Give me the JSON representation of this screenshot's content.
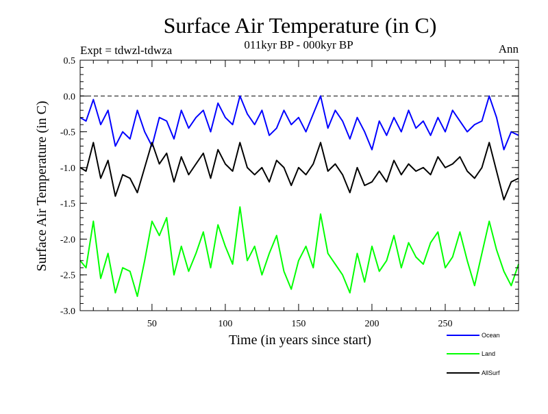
{
  "chart_data": {
    "type": "line",
    "title": "Surface Air Temperature (in C)",
    "subtitle": "011kyr BP - 000kyr BP",
    "left_label": "Expt = tdwzl-tdwza",
    "right_label": "Ann",
    "xlabel": "Time (in years since start)",
    "ylabel": "Surface Air Temperature (in C)",
    "xlim": [
      1,
      300
    ],
    "ylim": [
      -3.0,
      0.5
    ],
    "xticks": [
      50,
      100,
      150,
      200,
      250
    ],
    "yticks": [
      0.5,
      0.0,
      -0.5,
      -1.0,
      -1.5,
      -2.0,
      -2.5,
      -3.0
    ],
    "ytick_labels": [
      "0.5",
      "0.0",
      "-0.5",
      "-1.0",
      "-1.5",
      "-2.0",
      "-2.5",
      "-3.0"
    ],
    "reference_line": 0.0,
    "legend_position": "bottom-right",
    "series": [
      {
        "name": "Ocean",
        "color": "#0000ff",
        "x": [
          1,
          5,
          10,
          15,
          20,
          25,
          30,
          35,
          40,
          45,
          50,
          55,
          60,
          65,
          70,
          75,
          80,
          85,
          90,
          95,
          100,
          105,
          110,
          115,
          120,
          125,
          130,
          135,
          140,
          145,
          150,
          155,
          160,
          165,
          170,
          175,
          180,
          185,
          190,
          195,
          200,
          205,
          210,
          215,
          220,
          225,
          230,
          235,
          240,
          245,
          250,
          255,
          260,
          265,
          270,
          275,
          280,
          285,
          290,
          295,
          300
        ],
        "values": [
          -0.3,
          -0.35,
          -0.05,
          -0.4,
          -0.2,
          -0.7,
          -0.5,
          -0.6,
          -0.2,
          -0.5,
          -0.7,
          -0.3,
          -0.35,
          -0.6,
          -0.2,
          -0.45,
          -0.3,
          -0.2,
          -0.5,
          -0.1,
          -0.3,
          -0.4,
          0.0,
          -0.25,
          -0.4,
          -0.2,
          -0.55,
          -0.45,
          -0.2,
          -0.4,
          -0.3,
          -0.5,
          -0.25,
          0.0,
          -0.45,
          -0.2,
          -0.35,
          -0.6,
          -0.3,
          -0.5,
          -0.75,
          -0.35,
          -0.55,
          -0.3,
          -0.5,
          -0.2,
          -0.45,
          -0.35,
          -0.55,
          -0.3,
          -0.5,
          -0.2,
          -0.35,
          -0.5,
          -0.4,
          -0.35,
          0.0,
          -0.3,
          -0.75,
          -0.5,
          -0.55
        ]
      },
      {
        "name": "Land",
        "color": "#00ff00",
        "x": [
          1,
          5,
          10,
          15,
          20,
          25,
          30,
          35,
          40,
          45,
          50,
          55,
          60,
          65,
          70,
          75,
          80,
          85,
          90,
          95,
          100,
          105,
          110,
          115,
          120,
          125,
          130,
          135,
          140,
          145,
          150,
          155,
          160,
          165,
          170,
          175,
          180,
          185,
          190,
          195,
          200,
          205,
          210,
          215,
          220,
          225,
          230,
          235,
          240,
          245,
          250,
          255,
          260,
          265,
          270,
          275,
          280,
          285,
          290,
          295,
          300
        ],
        "values": [
          -2.3,
          -2.4,
          -1.75,
          -2.55,
          -2.2,
          -2.75,
          -2.4,
          -2.45,
          -2.8,
          -2.3,
          -1.75,
          -1.95,
          -1.7,
          -2.5,
          -2.1,
          -2.45,
          -2.2,
          -1.9,
          -2.4,
          -1.8,
          -2.1,
          -2.35,
          -1.55,
          -2.3,
          -2.1,
          -2.5,
          -2.2,
          -1.95,
          -2.45,
          -2.7,
          -2.3,
          -2.1,
          -2.4,
          -1.65,
          -2.2,
          -2.35,
          -2.5,
          -2.75,
          -2.2,
          -2.6,
          -2.1,
          -2.45,
          -2.3,
          -1.95,
          -2.4,
          -2.05,
          -2.25,
          -2.35,
          -2.05,
          -1.9,
          -2.4,
          -2.25,
          -1.9,
          -2.3,
          -2.65,
          -2.2,
          -1.75,
          -2.15,
          -2.45,
          -2.65,
          -2.35
        ]
      },
      {
        "name": "AllSurf",
        "color": "#000000",
        "x": [
          1,
          5,
          10,
          15,
          20,
          25,
          30,
          35,
          40,
          45,
          50,
          55,
          60,
          65,
          70,
          75,
          80,
          85,
          90,
          95,
          100,
          105,
          110,
          115,
          120,
          125,
          130,
          135,
          140,
          145,
          150,
          155,
          160,
          165,
          170,
          175,
          180,
          185,
          190,
          195,
          200,
          205,
          210,
          215,
          220,
          225,
          230,
          235,
          240,
          245,
          250,
          255,
          260,
          265,
          270,
          275,
          280,
          285,
          290,
          295,
          300
        ],
        "values": [
          -1.0,
          -1.05,
          -0.65,
          -1.15,
          -0.9,
          -1.4,
          -1.1,
          -1.15,
          -1.35,
          -1.0,
          -0.65,
          -0.95,
          -0.8,
          -1.2,
          -0.85,
          -1.1,
          -0.95,
          -0.8,
          -1.15,
          -0.75,
          -0.95,
          -1.05,
          -0.65,
          -1.0,
          -1.1,
          -1.0,
          -1.2,
          -0.9,
          -1.0,
          -1.25,
          -1.0,
          -1.1,
          -0.95,
          -0.65,
          -1.05,
          -0.95,
          -1.1,
          -1.35,
          -1.0,
          -1.25,
          -1.2,
          -1.05,
          -1.2,
          -0.9,
          -1.1,
          -0.95,
          -1.05,
          -1.0,
          -1.1,
          -0.85,
          -1.0,
          -0.95,
          -0.85,
          -1.05,
          -1.15,
          -1.0,
          -0.65,
          -1.05,
          -1.45,
          -1.2,
          -1.15
        ]
      }
    ]
  }
}
